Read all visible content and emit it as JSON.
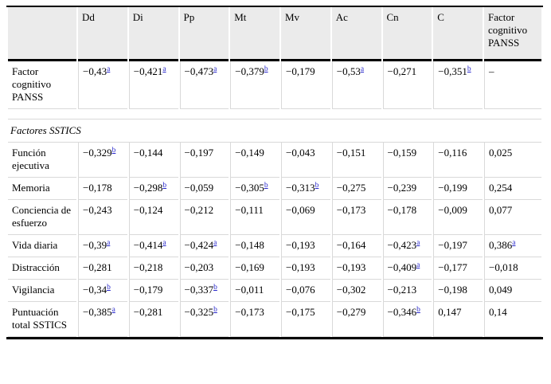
{
  "colors": {
    "header_background": "#ebebeb",
    "grid_line": "#d9d9d9",
    "strong_rule": "#000000",
    "footnote_link": "#2929cc",
    "text": "#000000"
  },
  "table": {
    "corner_label": "",
    "columns": [
      "Dd",
      "Di",
      "Pp",
      "Mt",
      "Mv",
      "Ac",
      "Cn",
      "C",
      "Factor cognitivo PANSS"
    ],
    "sections": [
      {
        "label": null,
        "rows": [
          {
            "label": "Factor cognitivo PANSS",
            "cells": [
              {
                "v": "−0,43",
                "sup": "a"
              },
              {
                "v": "−0,421",
                "sup": "a"
              },
              {
                "v": "−0,473",
                "sup": "a"
              },
              {
                "v": "−0,379",
                "sup": "b"
              },
              {
                "v": "−0,179"
              },
              {
                "v": "−0,53",
                "sup": "a"
              },
              {
                "v": "−0,271"
              },
              {
                "v": "−0,351",
                "sup": "b"
              },
              {
                "v": "–"
              }
            ]
          }
        ]
      },
      {
        "label": "Factores SSTICS",
        "rows": [
          {
            "label": "Función ejecutiva",
            "cells": [
              {
                "v": "−0,329",
                "sup": "b"
              },
              {
                "v": "−0,144"
              },
              {
                "v": "−0,197"
              },
              {
                "v": "−0,149"
              },
              {
                "v": "−0,043"
              },
              {
                "v": "−0,151"
              },
              {
                "v": "−0,159"
              },
              {
                "v": "−0,116"
              },
              {
                "v": "0,025"
              }
            ]
          },
          {
            "label": "Memoria",
            "cells": [
              {
                "v": "−0,178"
              },
              {
                "v": "−0,298",
                "sup": "b"
              },
              {
                "v": "−0,059"
              },
              {
                "v": "−0,305",
                "sup": "b"
              },
              {
                "v": "−0,313",
                "sup": "b"
              },
              {
                "v": "−0,275"
              },
              {
                "v": "−0,239"
              },
              {
                "v": "−0,199"
              },
              {
                "v": "0,254"
              }
            ]
          },
          {
            "label": "Conciencia de esfuerzo",
            "cells": [
              {
                "v": "−0,243"
              },
              {
                "v": "−0,124"
              },
              {
                "v": "−0,212"
              },
              {
                "v": "−0,111"
              },
              {
                "v": "−0,069"
              },
              {
                "v": "−0,173"
              },
              {
                "v": "−0,178"
              },
              {
                "v": "−0,009"
              },
              {
                "v": "0,077"
              }
            ]
          },
          {
            "label": "Vida diaria",
            "cells": [
              {
                "v": "−0,39",
                "sup": "a"
              },
              {
                "v": "−0,414",
                "sup": "a"
              },
              {
                "v": "−0,424",
                "sup": "a"
              },
              {
                "v": "−0,148"
              },
              {
                "v": "−0,193"
              },
              {
                "v": "−0,164"
              },
              {
                "v": "−0,423",
                "sup": "a"
              },
              {
                "v": "−0,197"
              },
              {
                "v": "0,386",
                "sup": "a"
              }
            ]
          },
          {
            "label": "Distracción",
            "cells": [
              {
                "v": "−0,281"
              },
              {
                "v": "−0,218"
              },
              {
                "v": "−0,203"
              },
              {
                "v": "−0,169"
              },
              {
                "v": "−0,193"
              },
              {
                "v": "−0,193"
              },
              {
                "v": "−0,409",
                "sup": "a"
              },
              {
                "v": "−0,177"
              },
              {
                "v": "−0,018"
              }
            ]
          },
          {
            "label": "Vigilancia",
            "cells": [
              {
                "v": "−0,34",
                "sup": "b"
              },
              {
                "v": "−0,179"
              },
              {
                "v": "−0,337",
                "sup": "b"
              },
              {
                "v": "−0,011"
              },
              {
                "v": "−0,076"
              },
              {
                "v": "−0,302"
              },
              {
                "v": "−0,213"
              },
              {
                "v": "−0,198"
              },
              {
                "v": "0,049"
              }
            ]
          },
          {
            "label": "Puntuación total SSTICS",
            "cells": [
              {
                "v": "−0,385",
                "sup": "a"
              },
              {
                "v": "−0,281"
              },
              {
                "v": "−0,325",
                "sup": "b"
              },
              {
                "v": "−0,173"
              },
              {
                "v": "−0,175"
              },
              {
                "v": "−0,279"
              },
              {
                "v": "−0,346",
                "sup": "b"
              },
              {
                "v": "0,147"
              },
              {
                "v": "0,14"
              }
            ]
          }
        ]
      }
    ]
  }
}
